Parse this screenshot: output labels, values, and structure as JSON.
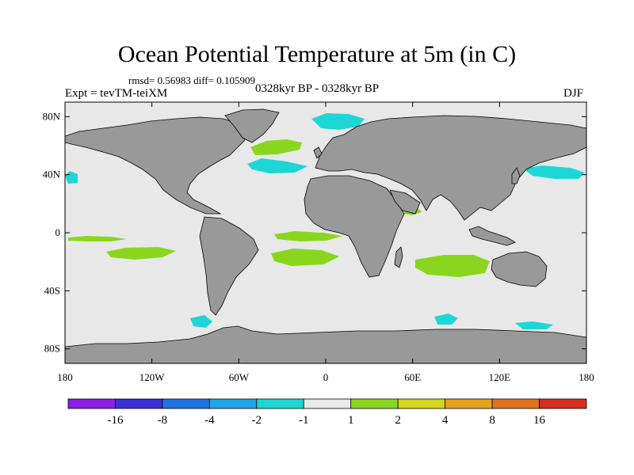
{
  "plot": {
    "title": "Ocean Potential Temperature at 5m (in C)",
    "stats": "rmsd= 0.56983 diff= 0.105909",
    "left_label": "Expt = tevTM-teiXM",
    "center_label": "0328kyr BP - 0328kyr BP",
    "right_label": "DJF"
  },
  "colors": {
    "ocean_neutral": "#e8e8e8",
    "land": "#999999",
    "coast": "#000000",
    "bin_lt_m16": "#8a1fe6",
    "bin_m16_m8": "#3a2fd6",
    "bin_m8_m4": "#1e73e0",
    "bin_m4_m2": "#1ea6e6",
    "bin_m2_m1": "#1fd6d6",
    "bin_1_2": "#8ad61f",
    "bin_2_4": "#d6d61f",
    "bin_4_8": "#e6a21f",
    "bin_8_16": "#e0721f",
    "bin_gt_16": "#d62e1f"
  },
  "chart_data": {
    "type": "heatmap",
    "projection": "cylindrical-equidistant",
    "lon_range": [
      -180,
      180
    ],
    "lat_range": [
      -90,
      90
    ],
    "x_ticks": [
      {
        "value": -180,
        "label": "180"
      },
      {
        "value": -120,
        "label": "120W"
      },
      {
        "value": -60,
        "label": "60W"
      },
      {
        "value": 0,
        "label": "0"
      },
      {
        "value": 60,
        "label": "60E"
      },
      {
        "value": 120,
        "label": "120E"
      },
      {
        "value": 180,
        "label": "180"
      }
    ],
    "y_ticks": [
      {
        "value": 80,
        "label": "80N"
      },
      {
        "value": 40,
        "label": "40N"
      },
      {
        "value": 0,
        "label": "0"
      },
      {
        "value": -40,
        "label": "40S"
      },
      {
        "value": -80,
        "label": "80S"
      }
    ],
    "colorbar": {
      "levels": [
        "-16",
        "-8",
        "-4",
        "-2",
        "-1",
        "1",
        "2",
        "4",
        "8",
        "16"
      ],
      "bins": [
        {
          "range": "< -16",
          "color": "#8a1fe6"
        },
        {
          "range": "-16 to -8",
          "color": "#3a2fd6"
        },
        {
          "range": "-8 to -4",
          "color": "#1e73e0"
        },
        {
          "range": "-4 to -2",
          "color": "#1ea6e6"
        },
        {
          "range": "-2 to -1",
          "color": "#1fd6d6"
        },
        {
          "range": "-1 to 1",
          "color": "#e8e8e8"
        },
        {
          "range": "1 to 2",
          "color": "#8ad61f"
        },
        {
          "range": "2 to 4",
          "color": "#d6d61f"
        },
        {
          "range": "4 to 8",
          "color": "#e6a21f"
        },
        {
          "range": "8 to 16",
          "color": "#e0721f"
        },
        {
          "range": "> 16",
          "color": "#d62e1f"
        }
      ]
    },
    "anomaly_regions": [
      {
        "region": "Arctic north of Scandinavia",
        "bin": "-2 to -1"
      },
      {
        "region": "North Atlantic subpolar",
        "bin": "1 to 2"
      },
      {
        "region": "North Atlantic mid-latitude",
        "bin": "-2 to -1"
      },
      {
        "region": "NW Pacific (Kuroshio)",
        "bin": "-2 to -1"
      },
      {
        "region": "NE Pacific near 35N",
        "bin": "-2 to -1"
      },
      {
        "region": "Equatorial east Pacific",
        "bin": "1 to 2"
      },
      {
        "region": "Tropical South Atlantic",
        "bin": "1 to 2"
      },
      {
        "region": "South Indian Ocean",
        "bin": "1 to 2"
      },
      {
        "region": "Southern Ocean patches",
        "bin": "-2 to -1"
      }
    ]
  }
}
